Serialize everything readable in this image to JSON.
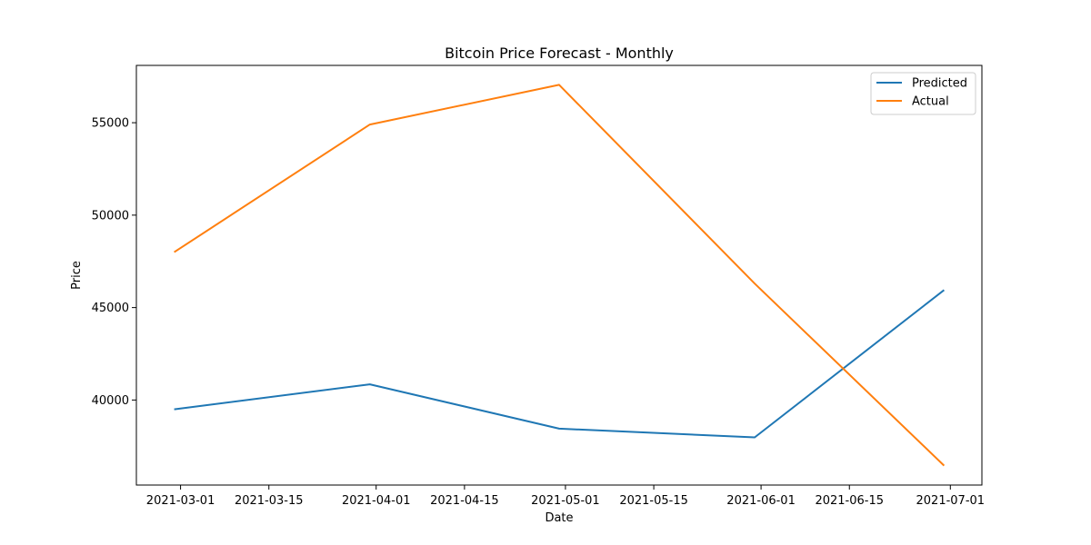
{
  "chart_data": {
    "type": "line",
    "title": "Bitcoin Price Forecast - Monthly",
    "xlabel": "Date",
    "ylabel": "Price",
    "x": [
      "2021-02-28",
      "2021-03-31",
      "2021-04-30",
      "2021-05-31",
      "2021-06-30"
    ],
    "series": [
      {
        "name": "Predicted",
        "color": "#1f77b4",
        "values": [
          39500,
          40850,
          38450,
          37980,
          45950
        ]
      },
      {
        "name": "Actual",
        "color": "#ff7f0e",
        "values": [
          48000,
          54900,
          57050,
          46300,
          36450
        ]
      }
    ],
    "xticks": [
      "2021-03-01",
      "2021-03-15",
      "2021-04-01",
      "2021-04-15",
      "2021-05-01",
      "2021-05-15",
      "2021-06-01",
      "2021-06-15",
      "2021-07-01"
    ],
    "yticks": [
      40000,
      45000,
      50000,
      55000
    ],
    "ylim": [
      35400,
      58100
    ],
    "xlim": [
      "2021-02-22",
      "2021-07-06"
    ],
    "grid": false,
    "legend_position": "top-right"
  }
}
